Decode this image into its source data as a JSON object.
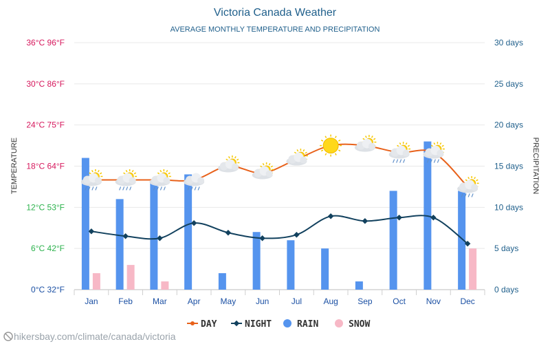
{
  "chart_data": {
    "type": "bar",
    "title": "Victoria Canada Weather",
    "subtitle": "AVERAGE MONTHLY TEMPERATURE AND PRECIPITATION",
    "ylabel_left": "TEMPERATURE",
    "ylabel_right": "PRECIPITATION",
    "categories": [
      "Jan",
      "Feb",
      "Mar",
      "Apr",
      "May",
      "Jun",
      "Jul",
      "Aug",
      "Sep",
      "Oct",
      "Nov",
      "Dec"
    ],
    "left_ticks": [
      {
        "value": 0,
        "label": "0°C 32°F",
        "color": "#1a4fa3"
      },
      {
        "value": 6,
        "label": "6°C 42°F",
        "color": "#2bb24c"
      },
      {
        "value": 12,
        "label": "12°C 53°F",
        "color": "#2bb24c"
      },
      {
        "value": 18,
        "label": "18°C 64°F",
        "color": "#d6175c"
      },
      {
        "value": 24,
        "label": "24°C 75°F",
        "color": "#d6175c"
      },
      {
        "value": 30,
        "label": "30°C 86°F",
        "color": "#d6175c"
      },
      {
        "value": 36,
        "label": "36°C 96°F",
        "color": "#d6175c"
      }
    ],
    "right_ticks": [
      {
        "value": 0,
        "label": "0 days"
      },
      {
        "value": 5,
        "label": "5 days"
      },
      {
        "value": 10,
        "label": "10 days"
      },
      {
        "value": 15,
        "label": "15 days"
      },
      {
        "value": 20,
        "label": "20 days"
      },
      {
        "value": 25,
        "label": "25 days"
      },
      {
        "value": 30,
        "label": "30 days"
      }
    ],
    "ylim_left": [
      0,
      36
    ],
    "ylim_right": [
      0,
      30
    ],
    "series": [
      {
        "name": "DAY",
        "kind": "line",
        "axis": "left",
        "color": "#e8611a",
        "values": [
          16,
          16,
          16,
          16,
          18,
          17,
          19,
          21,
          21,
          20,
          20,
          15
        ]
      },
      {
        "name": "NIGHT",
        "kind": "line",
        "axis": "left",
        "color": "#12415e",
        "values": [
          8.5,
          7.8,
          7.5,
          9.7,
          8.3,
          7.5,
          8,
          10.7,
          10,
          10.5,
          10.5,
          6.7
        ]
      },
      {
        "name": "RAIN",
        "kind": "bar",
        "axis": "right",
        "color": "#5594ee",
        "values": [
          16,
          11,
          13,
          14,
          2,
          7,
          6,
          5,
          1,
          12,
          18,
          12
        ]
      },
      {
        "name": "SNOW",
        "kind": "bar",
        "axis": "right",
        "color": "#f7b8c6",
        "values": [
          2,
          3,
          1,
          0,
          0,
          0,
          0,
          0,
          0,
          0,
          0,
          5
        ]
      }
    ],
    "weather_icons": [
      "sun-cloud-rain-icon",
      "sun-cloud-rain-icon",
      "sun-cloud-rain-icon",
      "cloud-rain-icon",
      "sun-cloud-icon",
      "sun-cloud-icon",
      "sun-cloud-icon",
      "sun-icon",
      "sun-cloud-icon",
      "sun-cloud-rain-icon",
      "sun-cloud-rain-icon",
      "sun-cloud-rain-icon"
    ],
    "grid": true,
    "legend_position": "bottom"
  },
  "footer": {
    "credit": "hikersbay.com/climate/canada/victoria"
  },
  "colors": {
    "title": "#1f5f8b",
    "subtitle": "#1f5f8b",
    "axis_label": "#333333",
    "right_tick": "#1f5f8b",
    "month": "#1a4fa3",
    "grid": "#e6e6e6"
  }
}
